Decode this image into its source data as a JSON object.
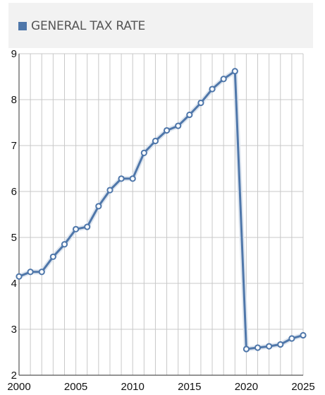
{
  "colors": {
    "series": "#4f77aa",
    "series_fill": "#dfe6ef",
    "grid": "#c8c8c8",
    "axis": "#555555",
    "legend_bg": "#f2f2f2"
  },
  "chart_data": {
    "type": "line",
    "legend_position": "top",
    "grid": true,
    "xlim": [
      2000,
      2025
    ],
    "ylim": [
      2,
      9
    ],
    "x_ticks": [
      "2000",
      "2005",
      "2010",
      "2015",
      "2020",
      "2025"
    ],
    "y_ticks": [
      "2",
      "3",
      "4",
      "5",
      "6",
      "7",
      "8",
      "9"
    ],
    "series": [
      {
        "name": "GENERAL TAX RATE",
        "x": [
          2000,
          2001,
          2002,
          2003,
          2004,
          2005,
          2006,
          2007,
          2008,
          2009,
          2010,
          2011,
          2012,
          2013,
          2014,
          2015,
          2016,
          2017,
          2018,
          2019,
          2020,
          2021,
          2022,
          2023,
          2024,
          2025
        ],
        "values": [
          4.15,
          4.25,
          4.25,
          4.58,
          4.85,
          5.18,
          5.23,
          5.68,
          6.03,
          6.28,
          6.28,
          6.84,
          7.1,
          7.33,
          7.43,
          7.67,
          7.93,
          8.23,
          8.45,
          8.62,
          2.57,
          2.6,
          2.63,
          2.67,
          2.8,
          2.87
        ]
      }
    ]
  }
}
